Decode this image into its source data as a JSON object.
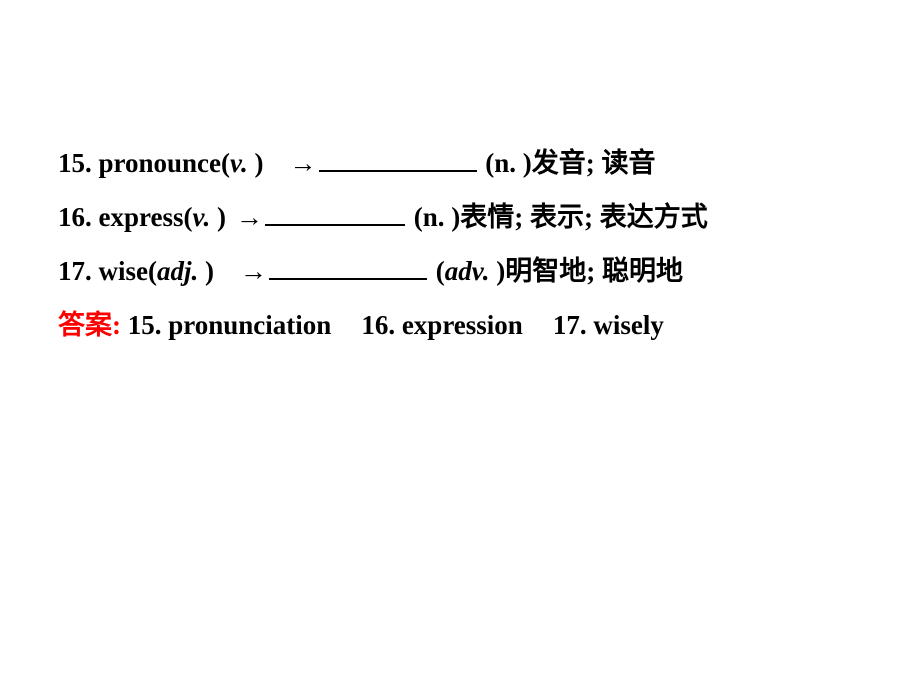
{
  "lines": [
    {
      "num": "15. ",
      "word": "pronounce(",
      "pos": "v. ",
      "close": ")",
      "arrow": "→",
      "gapBefore": "gap-sm",
      "gapAfter": "gap-xs",
      "blankClass": "blank-long",
      "after": " (n. )发音; 读音"
    },
    {
      "num": "16. ",
      "word": "express(",
      "pos": "v. ",
      "close": ")",
      "arrow": "→",
      "gapBefore": "gap-xs",
      "gapAfter": "gap-xs",
      "blankClass": "blank-med",
      "after": " (n. )表情; 表示; 表达方式"
    },
    {
      "num": "17. ",
      "word": "wise(",
      "pos": "adj. ",
      "close": ")",
      "arrow": "→",
      "gapBefore": "gap-sm",
      "gapAfter": "gap-xs",
      "blankClass": "blank-long",
      "afterPrefix": " (",
      "afterItalic": "adv. ",
      "afterSuffix": ")明智地; 聪明地"
    }
  ],
  "answer": {
    "label": "答案: ",
    "a1": "15. pronunciation",
    "a2": "16. expression",
    "a3": "17. wisely"
  },
  "colors": {
    "text": "#000000",
    "answer_label": "#ff0000",
    "background": "#ffffff"
  },
  "typography": {
    "fontsize": 27,
    "lineheight": 54,
    "weight": "bold",
    "family": "Times New Roman / SimSun"
  }
}
